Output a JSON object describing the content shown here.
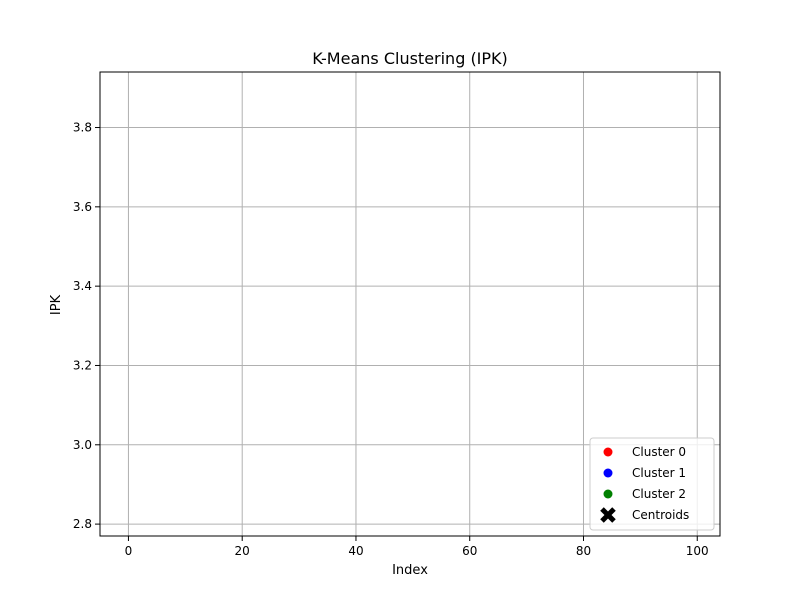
{
  "chart_data": {
    "type": "scatter",
    "title": "K-Means Clustering (IPK)",
    "xlabel": "Index",
    "ylabel": "IPK",
    "xlim": [
      -5,
      104
    ],
    "ylim": [
      2.77,
      3.94
    ],
    "xticks": [
      0,
      20,
      40,
      60,
      80,
      100
    ],
    "xtick_labels": [
      "0",
      "20",
      "40",
      "60",
      "80",
      "100"
    ],
    "yticks": [
      2.8,
      3.0,
      3.2,
      3.4,
      3.6,
      3.8
    ],
    "ytick_labels": [
      "2.8",
      "3.0",
      "3.2",
      "3.4",
      "3.6",
      "3.8"
    ],
    "grid": true,
    "legend_position": "lower-right",
    "series": [
      {
        "name": "Cluster 0",
        "color": "#ff0000",
        "marker": "circle",
        "points": []
      },
      {
        "name": "Cluster 1",
        "color": "#0000ff",
        "marker": "circle",
        "points": []
      },
      {
        "name": "Cluster 2",
        "color": "#008000",
        "marker": "circle",
        "points": []
      },
      {
        "name": "Centroids",
        "color": "#000000",
        "marker": "x",
        "points": []
      }
    ]
  }
}
